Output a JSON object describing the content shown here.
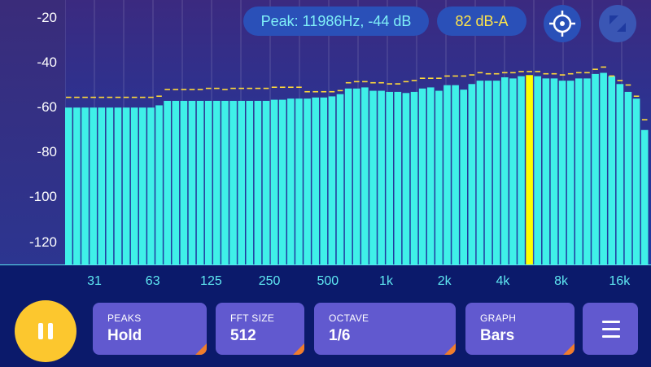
{
  "header": {
    "peak_readout": "Peak: 11986Hz, -44 dB",
    "level_readout": "82 dB-A"
  },
  "icons": {
    "target": "crosshair-icon",
    "expand": "expand-icon",
    "pause": "pause-icon",
    "menu": "menu-icon"
  },
  "controls": {
    "peaks": {
      "label": "PEAKS",
      "value": "Hold"
    },
    "fft": {
      "label": "FFT SIZE",
      "value": "512"
    },
    "octave": {
      "label": "OCTAVE",
      "value": "1/6"
    },
    "graph": {
      "label": "GRAPH",
      "value": "Bars"
    }
  },
  "colors": {
    "bar": "#3ff0e8",
    "highlight_bar": "#ffff00",
    "peak_marker": "#ffd93a",
    "accent": "#fcc72e"
  },
  "chart_data": {
    "type": "bar",
    "yticks": [
      "-20",
      "-40",
      "-60",
      "-80",
      "-100",
      "-120"
    ],
    "xticks": [
      "31",
      "63",
      "125",
      "250",
      "500",
      "1k",
      "2k",
      "4k",
      "8k",
      "16k"
    ],
    "ylim": [
      -130,
      -12
    ],
    "highlight_index": 56,
    "levels_db": [
      -60,
      -60,
      -60,
      -60,
      -60,
      -60,
      -60,
      -60,
      -60,
      -60,
      -60,
      -59,
      -57,
      -57,
      -57,
      -57,
      -57,
      -57,
      -57,
      -57,
      -57,
      -57,
      -57,
      -57,
      -57,
      -56.5,
      -56.5,
      -56,
      -56,
      -56,
      -55.5,
      -55.5,
      -55,
      -54,
      -51.5,
      -51.5,
      -51,
      -52.5,
      -52.5,
      -53,
      -53,
      -53.5,
      -53,
      -51.5,
      -51,
      -52.5,
      -50,
      -50,
      -52,
      -49.5,
      -48,
      -48,
      -48,
      -46.5,
      -47,
      -46,
      -45.5,
      -46,
      -47,
      -47,
      -48,
      -48,
      -47,
      -47,
      -45,
      -44.5,
      -46,
      -49.5,
      -53,
      -56,
      -70
    ],
    "peaks_db": [
      -55.5,
      -55.5,
      -55.5,
      -55.5,
      -55.5,
      -55.5,
      -55.5,
      -55.5,
      -55.5,
      -55.5,
      -55.5,
      -55,
      -52,
      -52,
      -52,
      -52,
      -52,
      -51.5,
      -51.5,
      -52,
      -51.5,
      -51.5,
      -51.5,
      -51.5,
      -51.5,
      -51,
      -51,
      -51,
      -51,
      -53,
      -53,
      -53,
      -53,
      -52.5,
      -49,
      -48.5,
      -48.5,
      -49,
      -49,
      -49.5,
      -49.5,
      -48.5,
      -48,
      -47,
      -47,
      -47,
      -46,
      -46,
      -46,
      -45.5,
      -44.5,
      -45,
      -45,
      -44.5,
      -44.5,
      -44,
      -44,
      -44,
      -45,
      -45,
      -45.5,
      -45,
      -44.5,
      -44.5,
      -43,
      -42,
      -46,
      -48,
      -50,
      -55,
      -65.5
    ]
  }
}
